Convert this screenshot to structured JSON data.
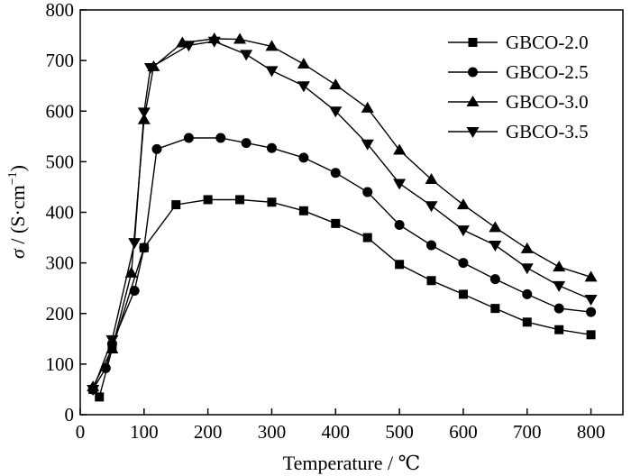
{
  "chart_data": {
    "type": "line",
    "xlabel": "Temperature / ℃",
    "ylabel": {
      "sigma": "σ",
      "slash": " / (S·cm",
      "sup": "−1",
      "close": ")"
    },
    "xlim": [
      0,
      850
    ],
    "ylim": [
      0,
      800
    ],
    "xticks": [
      "0",
      "100",
      "200",
      "300",
      "400",
      "500",
      "600",
      "700",
      "800"
    ],
    "yticks": [
      "0",
      "100",
      "200",
      "300",
      "400",
      "500",
      "600",
      "700",
      "800"
    ],
    "grid": false,
    "legend_position": "top-right",
    "color": "#000000",
    "series": [
      {
        "name": "GBCO-2.0",
        "marker": "square",
        "points": [
          [
            20,
            50
          ],
          [
            30,
            35
          ],
          [
            50,
            130
          ],
          [
            100,
            330
          ],
          [
            150,
            415
          ],
          [
            200,
            425
          ],
          [
            250,
            425
          ],
          [
            300,
            420
          ],
          [
            350,
            403
          ],
          [
            400,
            378
          ],
          [
            450,
            350
          ],
          [
            500,
            297
          ],
          [
            550,
            265
          ],
          [
            600,
            238
          ],
          [
            650,
            210
          ],
          [
            700,
            183
          ],
          [
            750,
            168
          ],
          [
            800,
            158
          ]
        ]
      },
      {
        "name": "GBCO-2.5",
        "marker": "circle",
        "points": [
          [
            20,
            50
          ],
          [
            40,
            92
          ],
          [
            50,
            140
          ],
          [
            85,
            245
          ],
          [
            100,
            330
          ],
          [
            120,
            525
          ],
          [
            170,
            547
          ],
          [
            220,
            547
          ],
          [
            260,
            537
          ],
          [
            300,
            527
          ],
          [
            350,
            508
          ],
          [
            400,
            478
          ],
          [
            450,
            440
          ],
          [
            500,
            375
          ],
          [
            550,
            335
          ],
          [
            600,
            300
          ],
          [
            650,
            268
          ],
          [
            700,
            238
          ],
          [
            750,
            210
          ],
          [
            800,
            203
          ]
        ]
      },
      {
        "name": "GBCO-3.0",
        "marker": "triangle-up",
        "points": [
          [
            20,
            55
          ],
          [
            50,
            130
          ],
          [
            80,
            280
          ],
          [
            100,
            583
          ],
          [
            115,
            688
          ],
          [
            160,
            735
          ],
          [
            210,
            743
          ],
          [
            250,
            742
          ],
          [
            300,
            728
          ],
          [
            350,
            693
          ],
          [
            400,
            652
          ],
          [
            450,
            606
          ],
          [
            500,
            523
          ],
          [
            550,
            465
          ],
          [
            600,
            415
          ],
          [
            650,
            370
          ],
          [
            700,
            328
          ],
          [
            750,
            292
          ],
          [
            800,
            272
          ]
        ]
      },
      {
        "name": "GBCO-3.5",
        "marker": "triangle-down",
        "points": [
          [
            20,
            50
          ],
          [
            50,
            148
          ],
          [
            85,
            340
          ],
          [
            100,
            598
          ],
          [
            110,
            686
          ],
          [
            170,
            730
          ],
          [
            210,
            738
          ],
          [
            260,
            712
          ],
          [
            300,
            680
          ],
          [
            350,
            650
          ],
          [
            400,
            600
          ],
          [
            450,
            535
          ],
          [
            500,
            457
          ],
          [
            550,
            413
          ],
          [
            600,
            365
          ],
          [
            650,
            335
          ],
          [
            700,
            290
          ],
          [
            750,
            255
          ],
          [
            800,
            228
          ]
        ]
      }
    ]
  }
}
